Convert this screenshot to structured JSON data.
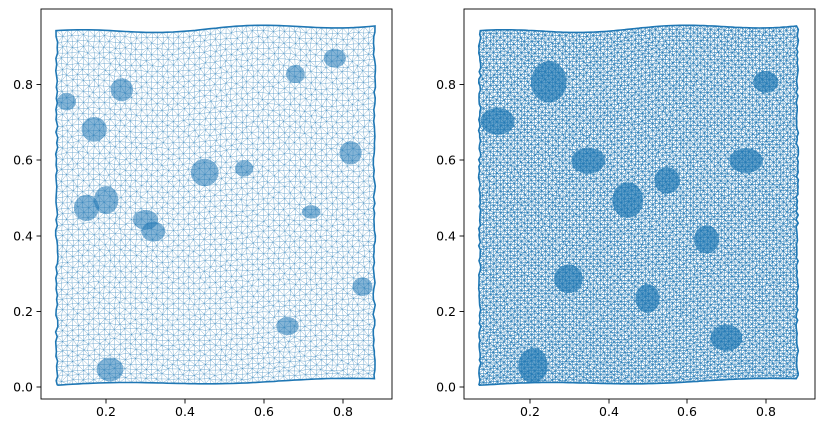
{
  "chart_data": [
    {
      "type": "triplot",
      "title": "",
      "xlabel": "",
      "ylabel": "",
      "xlim": [
        0.035,
        0.925
      ],
      "ylim": [
        -0.005,
        0.985
      ],
      "xticks": [
        0.2,
        0.4,
        0.6,
        0.8
      ],
      "yticks": [
        0.0,
        0.2,
        0.4,
        0.6,
        0.8
      ],
      "xtick_labels": [
        "0.2",
        "0.4",
        "0.6",
        "0.8"
      ],
      "ytick_labels": [
        "0.0",
        "0.2",
        "0.4",
        "0.6",
        "0.8"
      ],
      "mesh_color": "#1f77b4",
      "mesh_density": "medium",
      "extent": {
        "x": [
          0.075,
          0.88
        ],
        "y_bottom": [
          0.03,
          0.045
        ],
        "y_top": [
          0.925,
          0.945
        ]
      },
      "dense_clusters": [
        {
          "x": 0.21,
          "y": 0.07
        },
        {
          "x": 0.1,
          "y": 0.75
        },
        {
          "x": 0.24,
          "y": 0.78
        },
        {
          "x": 0.17,
          "y": 0.68
        },
        {
          "x": 0.15,
          "y": 0.48
        },
        {
          "x": 0.2,
          "y": 0.5
        },
        {
          "x": 0.3,
          "y": 0.45
        },
        {
          "x": 0.32,
          "y": 0.42
        },
        {
          "x": 0.45,
          "y": 0.57
        },
        {
          "x": 0.55,
          "y": 0.58
        },
        {
          "x": 0.68,
          "y": 0.82
        },
        {
          "x": 0.78,
          "y": 0.86
        },
        {
          "x": 0.72,
          "y": 0.47
        },
        {
          "x": 0.82,
          "y": 0.62
        },
        {
          "x": 0.85,
          "y": 0.28
        },
        {
          "x": 0.66,
          "y": 0.18
        }
      ]
    },
    {
      "type": "triplot",
      "title": "",
      "xlabel": "",
      "ylabel": "",
      "xlim": [
        0.035,
        0.925
      ],
      "ylim": [
        -0.005,
        0.985
      ],
      "xticks": [
        0.2,
        0.4,
        0.6,
        0.8
      ],
      "yticks": [
        0.0,
        0.2,
        0.4,
        0.6,
        0.8
      ],
      "xtick_labels": [
        "0.2",
        "0.4",
        "0.6",
        "0.8"
      ],
      "ytick_labels": [
        "0.0",
        "0.2",
        "0.4",
        "0.6",
        "0.8"
      ],
      "mesh_color": "#1f77b4",
      "mesh_density": "high",
      "extent": {
        "x": [
          0.075,
          0.88
        ],
        "y_bottom": [
          0.03,
          0.045
        ],
        "y_top": [
          0.925,
          0.945
        ]
      },
      "dense_clusters": [
        {
          "x": 0.21,
          "y": 0.08
        },
        {
          "x": 0.12,
          "y": 0.7
        },
        {
          "x": 0.25,
          "y": 0.8
        },
        {
          "x": 0.35,
          "y": 0.6
        },
        {
          "x": 0.45,
          "y": 0.5
        },
        {
          "x": 0.55,
          "y": 0.55
        },
        {
          "x": 0.65,
          "y": 0.4
        },
        {
          "x": 0.75,
          "y": 0.6
        },
        {
          "x": 0.8,
          "y": 0.8
        },
        {
          "x": 0.7,
          "y": 0.15
        },
        {
          "x": 0.3,
          "y": 0.3
        },
        {
          "x": 0.5,
          "y": 0.25
        }
      ]
    }
  ]
}
